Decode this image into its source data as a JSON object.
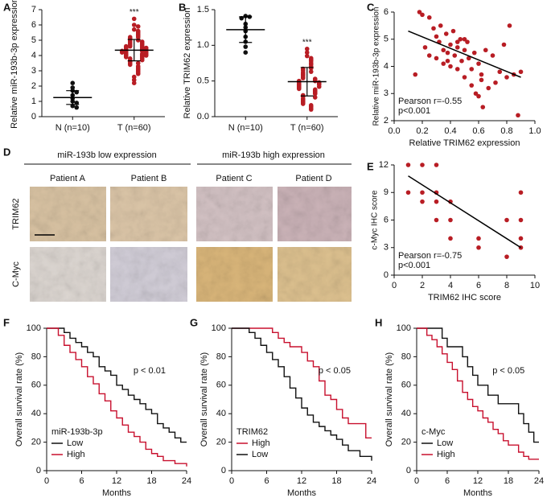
{
  "chart_data": [
    {
      "type": "dot-plot",
      "panel": "A",
      "ylabel": "Relative miR-193b-3p expression",
      "categories": [
        "N (n=10)",
        "T (n=60)"
      ],
      "ylim": [
        0,
        7
      ],
      "yticks": [
        0,
        1,
        2,
        3,
        4,
        5,
        6,
        7
      ],
      "annotation": "***",
      "groups": [
        {
          "color": "#111111",
          "mean": 1.25,
          "sd": 0.45,
          "values": [
            2.2,
            1.9,
            1.7,
            1.6,
            1.4,
            1.2,
            1.0,
            0.9,
            0.7,
            0.6
          ]
        },
        {
          "color": "#b81d24",
          "mean": 4.35,
          "sd": 0.7,
          "values": [
            6.4,
            6.0,
            5.9,
            5.7,
            5.6,
            5.5,
            5.4,
            5.3,
            5.2,
            5.2,
            5.1,
            5.0,
            5.0,
            4.9,
            4.9,
            4.8,
            4.8,
            4.7,
            4.7,
            4.6,
            4.6,
            4.6,
            4.5,
            4.5,
            4.5,
            4.4,
            4.4,
            4.4,
            4.3,
            4.3,
            4.3,
            4.3,
            4.2,
            4.2,
            4.2,
            4.1,
            4.1,
            4.1,
            4.0,
            4.0,
            4.0,
            3.9,
            3.9,
            3.8,
            3.8,
            3.7,
            3.7,
            3.6,
            3.5,
            3.5,
            3.4,
            3.3,
            3.2,
            3.1,
            3.0,
            2.9,
            2.8,
            2.6,
            2.4,
            2.2
          ]
        }
      ]
    },
    {
      "type": "dot-plot",
      "panel": "B",
      "ylabel": "Relative TRIM62 expression",
      "categories": [
        "N (n=10)",
        "T (n=60)"
      ],
      "ylim": [
        0,
        1.5
      ],
      "yticks": [
        {
          "value": 0,
          "label": "0.0"
        },
        0.5,
        {
          "value": 1,
          "label": "1.0"
        },
        1.5
      ],
      "annotation": "***",
      "groups": [
        {
          "color": "#111111",
          "mean": 1.22,
          "sd": 0.18,
          "values": [
            1.41,
            1.4,
            1.38,
            1.3,
            1.25,
            1.2,
            1.12,
            1.05,
            0.98,
            0.9
          ]
        },
        {
          "color": "#b81d24",
          "mean": 0.49,
          "sd": 0.2,
          "values": [
            0.95,
            0.9,
            0.85,
            0.82,
            0.8,
            0.78,
            0.75,
            0.73,
            0.7,
            0.68,
            0.67,
            0.65,
            0.63,
            0.62,
            0.6,
            0.59,
            0.58,
            0.56,
            0.55,
            0.54,
            0.53,
            0.52,
            0.51,
            0.5,
            0.5,
            0.49,
            0.48,
            0.48,
            0.47,
            0.46,
            0.45,
            0.45,
            0.44,
            0.43,
            0.42,
            0.42,
            0.41,
            0.4,
            0.39,
            0.38,
            0.37,
            0.36,
            0.35,
            0.34,
            0.33,
            0.32,
            0.3,
            0.29,
            0.28,
            0.27,
            0.25,
            0.24,
            0.22,
            0.21,
            0.2,
            0.18,
            0.16,
            0.14,
            0.12,
            0.1
          ]
        }
      ]
    },
    {
      "type": "scatter",
      "panel": "C",
      "xlabel": "Relative TRIM62 expression",
      "ylabel": "Relative miR-193b-3p expression",
      "color": "#b81d24",
      "xlim": [
        0,
        1
      ],
      "xticks": [
        {
          "value": 0,
          "label": "0.0"
        },
        0.2,
        0.4,
        0.6,
        0.8,
        {
          "value": 1,
          "label": "1.0"
        }
      ],
      "ylim": [
        2,
        6
      ],
      "yticks": [
        2,
        3,
        4,
        5,
        6
      ],
      "annotations": [
        "Pearson r=-0.55",
        "p<0.001"
      ],
      "fit": {
        "x": [
          0.1,
          0.9
        ],
        "y": [
          5.3,
          3.6
        ]
      },
      "x": [
        0.15,
        0.18,
        0.2,
        0.22,
        0.25,
        0.25,
        0.28,
        0.3,
        0.3,
        0.32,
        0.33,
        0.35,
        0.35,
        0.37,
        0.38,
        0.4,
        0.4,
        0.42,
        0.43,
        0.45,
        0.45,
        0.47,
        0.48,
        0.5,
        0.5,
        0.52,
        0.53,
        0.55,
        0.55,
        0.57,
        0.58,
        0.6,
        0.6,
        0.62,
        0.63,
        0.65,
        0.67,
        0.7,
        0.72,
        0.75,
        0.78,
        0.8,
        0.82,
        0.85,
        0.88,
        0.9,
        0.45,
        0.5,
        0.38,
        0.62
      ],
      "y": [
        3.7,
        6.0,
        5.9,
        4.7,
        5.8,
        4.4,
        5.4,
        5.1,
        4.3,
        4.9,
        5.5,
        4.6,
        4.1,
        5.2,
        4.5,
        4.8,
        4.0,
        5.3,
        4.4,
        4.7,
        3.9,
        5.0,
        4.2,
        4.6,
        3.6,
        4.9,
        4.3,
        3.9,
        3.3,
        4.5,
        3.0,
        4.1,
        2.9,
        3.7,
        2.5,
        4.6,
        3.2,
        4.4,
        3.4,
        3.8,
        4.8,
        3.6,
        5.5,
        3.7,
        2.2,
        3.8,
        4.9,
        5.0,
        4.2,
        3.5
      ]
    },
    {
      "type": "scatter",
      "panel": "E",
      "xlabel": "TRIM62 IHC score",
      "ylabel": "c-Myc IHC score",
      "color": "#b81d24",
      "xlim": [
        0,
        10
      ],
      "xticks": [
        0,
        2,
        4,
        6,
        8,
        10
      ],
      "ylim": [
        0,
        12
      ],
      "yticks": [
        0,
        3,
        6,
        9,
        12
      ],
      "annotations": [
        "Pearson r=-0.75",
        "p<0.001"
      ],
      "fit": {
        "x": [
          1,
          9
        ],
        "y": [
          10.8,
          3
        ]
      },
      "x": [
        1,
        1,
        2,
        2,
        2,
        3,
        3,
        3,
        3,
        4,
        4,
        4,
        6,
        6,
        8,
        8,
        9,
        9,
        9,
        9
      ],
      "y": [
        12,
        9,
        12,
        9,
        8,
        12,
        9,
        8,
        6,
        8,
        6,
        4,
        4,
        3,
        2,
        6,
        9,
        6,
        4,
        3
      ]
    },
    {
      "type": "survival",
      "panel": "F",
      "xlabel": "Months",
      "ylabel": "Overall survival rate (%)",
      "annotation": "p < 0.01",
      "legend": "lower left",
      "legend_title": "miR-193b-3p",
      "xlim": [
        0,
        24
      ],
      "xticks": [
        0,
        6,
        12,
        18,
        24
      ],
      "ylim": [
        0,
        100
      ],
      "yticks": [
        0,
        20,
        40,
        60,
        80,
        100
      ],
      "series": [
        {
          "name": "Low",
          "color": "#111111",
          "x": [
            0,
            3,
            4,
            5,
            6,
            7,
            8,
            9,
            10,
            11,
            12,
            13,
            14,
            15,
            16,
            17,
            18,
            19,
            20,
            21,
            22,
            23,
            24
          ],
          "values": [
            100,
            97,
            93,
            90,
            87,
            83,
            80,
            73,
            70,
            67,
            60,
            57,
            53,
            50,
            47,
            43,
            40,
            33,
            30,
            27,
            23,
            20,
            20
          ]
        },
        {
          "name": "High",
          "color": "#c8102e",
          "x": [
            0,
            2,
            3,
            4,
            5,
            6,
            7,
            8,
            9,
            10,
            11,
            12,
            13,
            14,
            15,
            16,
            17,
            18,
            19,
            20,
            22,
            24
          ],
          "values": [
            100,
            95,
            88,
            83,
            78,
            73,
            66,
            61,
            54,
            49,
            42,
            37,
            32,
            27,
            24,
            20,
            15,
            12,
            10,
            7,
            5,
            3
          ]
        }
      ]
    },
    {
      "type": "survival",
      "panel": "G",
      "xlabel": "Months",
      "ylabel": "Overall survival rate (%)",
      "annotation": "p < 0.05",
      "legend": "lower left",
      "legend_title": "TRIM62",
      "xlim": [
        0,
        24
      ],
      "xticks": [
        0,
        6,
        12,
        18,
        24
      ],
      "ylim": [
        0,
        100
      ],
      "yticks": [
        0,
        20,
        40,
        60,
        80,
        100
      ],
      "series": [
        {
          "name": "High",
          "color": "#c8102e",
          "x": [
            0,
            7,
            8,
            9,
            10,
            12,
            13,
            14,
            15,
            16,
            17,
            18,
            19,
            20,
            23,
            24
          ],
          "values": [
            100,
            97,
            93,
            90,
            87,
            83,
            77,
            73,
            63,
            53,
            50,
            43,
            37,
            33,
            23,
            23
          ]
        },
        {
          "name": "Low",
          "color": "#111111",
          "x": [
            0,
            3,
            4,
            5,
            6,
            7,
            8,
            9,
            10,
            11,
            12,
            13,
            14,
            15,
            16,
            17,
            18,
            19,
            20,
            22,
            24
          ],
          "values": [
            100,
            97,
            93,
            88,
            83,
            78,
            73,
            66,
            58,
            51,
            44,
            39,
            34,
            31,
            28,
            25,
            22,
            18,
            14,
            10,
            7
          ]
        }
      ]
    },
    {
      "type": "survival",
      "panel": "H",
      "xlabel": "Months",
      "ylabel": "Overall survival rate (%)",
      "annotation": "p < 0.05",
      "legend": "lower left",
      "legend_title": "c-Myc",
      "xlim": [
        0,
        24
      ],
      "xticks": [
        0,
        6,
        12,
        18,
        24
      ],
      "ylim": [
        0,
        100
      ],
      "yticks": [
        0,
        20,
        40,
        60,
        80,
        100
      ],
      "series": [
        {
          "name": "Low",
          "color": "#111111",
          "x": [
            0,
            5,
            6,
            9,
            10,
            11,
            12,
            14,
            16,
            18,
            20,
            21,
            22,
            23,
            24
          ],
          "values": [
            100,
            93,
            87,
            80,
            73,
            67,
            60,
            53,
            47,
            47,
            40,
            33,
            27,
            20,
            20
          ]
        },
        {
          "name": "High",
          "color": "#c8102e",
          "x": [
            0,
            2,
            3,
            4,
            5,
            6,
            7,
            8,
            9,
            10,
            11,
            12,
            13,
            14,
            15,
            16,
            17,
            18,
            20,
            21,
            22,
            24
          ],
          "values": [
            100,
            95,
            92,
            87,
            82,
            76,
            71,
            63,
            55,
            50,
            45,
            42,
            37,
            34,
            29,
            26,
            21,
            18,
            13,
            10,
            8,
            8
          ]
        }
      ]
    }
  ],
  "ihc_panel": {
    "panel": "D",
    "groups": [
      "miR-193b low expression",
      "miR-193b high expression"
    ],
    "patients": [
      "Patient A",
      "Patient B",
      "Patient C",
      "Patient D"
    ],
    "rows": [
      "TRIM62",
      "C-Myc"
    ]
  }
}
